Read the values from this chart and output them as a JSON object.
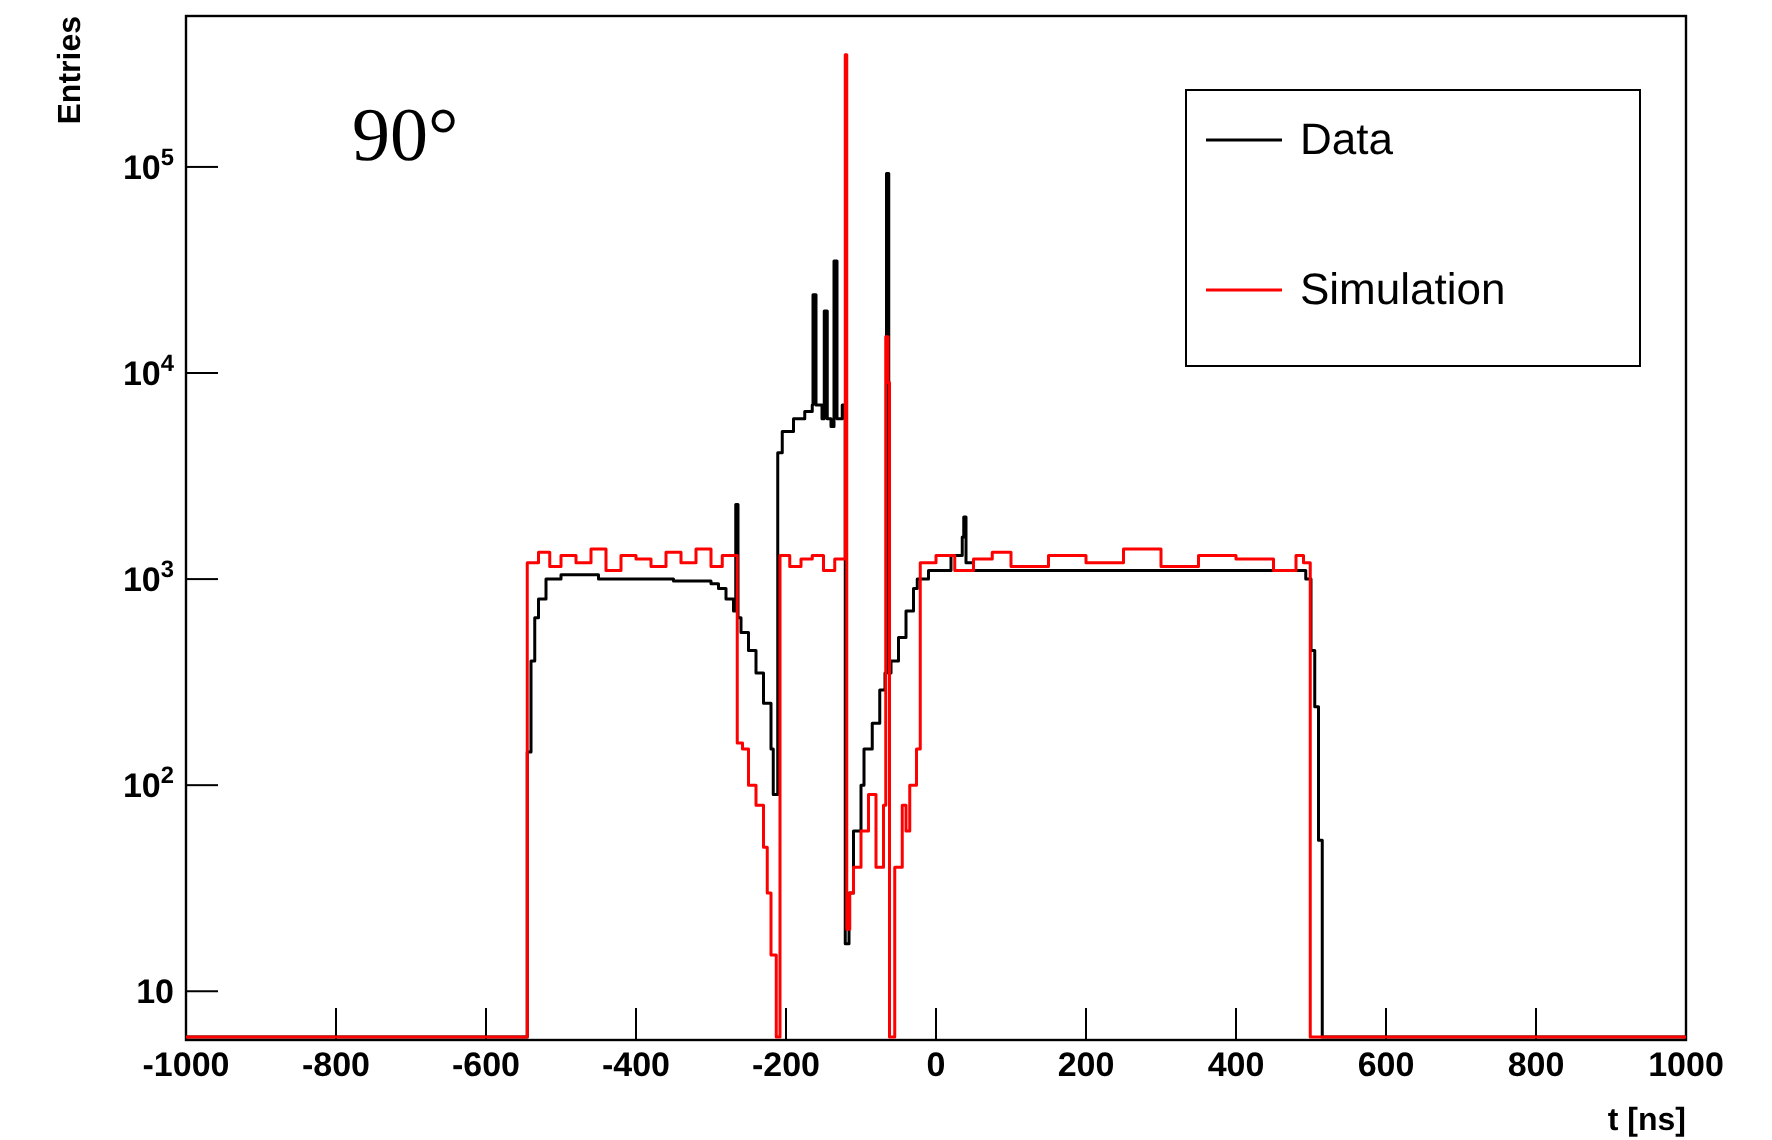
{
  "chart_data": {
    "type": "step",
    "xlabel": "t [ns]",
    "ylabel": "Entries",
    "annotations": [
      "90°"
    ],
    "log": "y",
    "legend": "top right",
    "xlim": [
      -1000,
      1000
    ],
    "xticks": [
      -1000,
      -800,
      -600,
      -400,
      -200,
      0,
      200,
      400,
      600,
      800,
      1000
    ],
    "ylim": [
      5.8,
      540000
    ],
    "yticks": [
      10,
      {
        "value": 100,
        "label": "10$^{2}$"
      },
      {
        "value": 1000,
        "label": "10$^{3}$"
      },
      {
        "value": 10000,
        "label": "10$^{4}$"
      },
      {
        "value": 100000,
        "label": "10$^{5}$"
      }
    ],
    "series": [
      {
        "name": "Data",
        "color": "#000000",
        "x": [
          -1000,
          -545,
          -540,
          -535,
          -530,
          -520,
          -500,
          -450,
          -400,
          -350,
          -300,
          -290,
          -280,
          -270,
          -267,
          -264,
          -260,
          -250,
          -240,
          -230,
          -220,
          -217,
          -211,
          -205,
          -190,
          -175,
          -165,
          -164,
          -160,
          -152,
          -149,
          -145,
          -140,
          -136,
          -132,
          -125,
          -121,
          -116,
          -110,
          -100,
          -96,
          -85,
          -75,
          -68,
          -66,
          -63,
          -60,
          -50,
          -40,
          -30,
          -25,
          -10,
          0,
          20,
          35,
          37,
          40,
          50,
          100,
          200,
          300,
          400,
          480,
          493,
          500,
          505,
          510,
          515,
          1000
        ],
        "values": [
          6,
          145,
          400,
          650,
          800,
          1000,
          1050,
          1000,
          1000,
          980,
          950,
          900,
          800,
          700,
          2300,
          650,
          550,
          450,
          350,
          250,
          150,
          90,
          4100,
          5200,
          6000,
          6500,
          7000,
          24000,
          7000,
          6000,
          20000,
          6000,
          5500,
          35000,
          6000,
          7000,
          17,
          30,
          60,
          100,
          150,
          200,
          290,
          350,
          93000,
          350,
          400,
          520,
          700,
          900,
          1000,
          1100,
          1100,
          1300,
          1600,
          2000,
          1200,
          1100,
          1100,
          1100,
          1100,
          1100,
          1100,
          1000,
          450,
          240,
          54,
          6,
          6
        ]
      },
      {
        "name": "Simulation",
        "color": "#ff0000",
        "x": [
          -1000,
          -545,
          -530,
          -515,
          -500,
          -480,
          -460,
          -440,
          -420,
          -400,
          -380,
          -360,
          -340,
          -320,
          -300,
          -285,
          -265,
          -258,
          -250,
          -240,
          -230,
          -225,
          -220,
          -213,
          -208,
          -195,
          -180,
          -165,
          -150,
          -135,
          -121,
          -119,
          -115,
          -110,
          -100,
          -90,
          -80,
          -70,
          -67,
          -64,
          -62,
          -55,
          -45,
          -40,
          -35,
          -26,
          -21,
          0,
          25,
          50,
          75,
          100,
          150,
          200,
          250,
          300,
          350,
          400,
          450,
          480,
          490,
          499,
          1000
        ],
        "values": [
          6,
          1200,
          1350,
          1150,
          1300,
          1200,
          1400,
          1100,
          1300,
          1250,
          1150,
          1350,
          1200,
          1400,
          1150,
          1300,
          160,
          150,
          100,
          80,
          50,
          30,
          15,
          6,
          1300,
          1150,
          1250,
          1300,
          1100,
          1250,
          350000,
          20,
          30,
          40,
          60,
          90,
          40,
          80,
          15000,
          9000,
          6,
          40,
          80,
          60,
          100,
          150,
          1200,
          1300,
          1100,
          1250,
          1350,
          1150,
          1300,
          1200,
          1400,
          1150,
          1300,
          1250,
          1100,
          1300,
          1200,
          6,
          6
        ]
      }
    ]
  }
}
